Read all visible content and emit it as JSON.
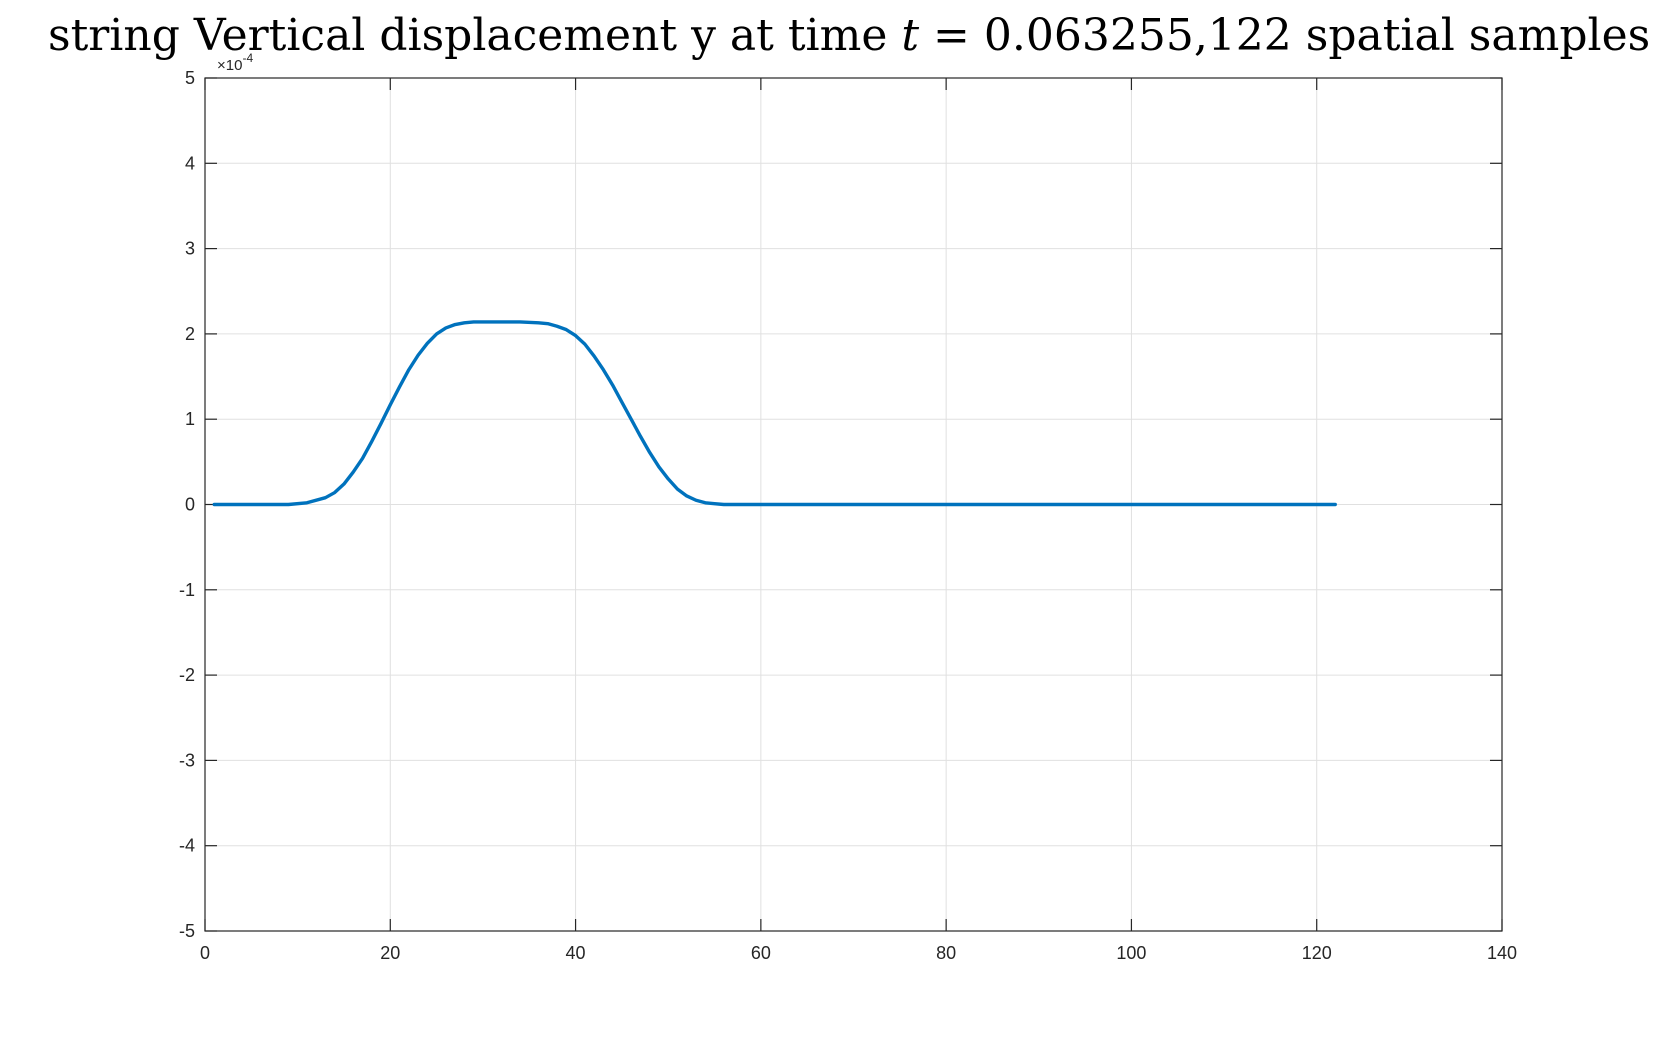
{
  "chart_data": {
    "type": "line",
    "title_prefix": "string Vertical displacement y at time ",
    "title_var": "t",
    "title_suffix": " = 0.063255,122 spatial samples",
    "xlabel": "",
    "ylabel": "",
    "xlim": [
      0,
      140
    ],
    "ylim": [
      -5,
      5
    ],
    "x_ticks": [
      0,
      20,
      40,
      60,
      80,
      100,
      120,
      140
    ],
    "y_ticks": [
      -5,
      -4,
      -3,
      -2,
      -1,
      0,
      1,
      2,
      3,
      4,
      5
    ],
    "y_exponent_label": "×10",
    "y_exponent_power": "-4",
    "grid": true,
    "line_color": "#0072BD",
    "series": [
      {
        "x": [
          1,
          5,
          9,
          11,
          13,
          14,
          15,
          16,
          17,
          18,
          19,
          20,
          21,
          22,
          23,
          24,
          25,
          26,
          27,
          28,
          29,
          30,
          32,
          34,
          36,
          37,
          38,
          39,
          40,
          41,
          42,
          43,
          44,
          45,
          46,
          47,
          48,
          49,
          50,
          51,
          52,
          53,
          54,
          55,
          56,
          58,
          60,
          80,
          100,
          122
        ],
        "y": [
          0,
          0,
          0,
          0.02,
          0.08,
          0.14,
          0.24,
          0.38,
          0.54,
          0.74,
          0.95,
          1.17,
          1.38,
          1.58,
          1.75,
          1.89,
          2.0,
          2.07,
          2.11,
          2.13,
          2.14,
          2.14,
          2.14,
          2.14,
          2.13,
          2.12,
          2.09,
          2.05,
          1.98,
          1.88,
          1.74,
          1.58,
          1.4,
          1.2,
          1.0,
          0.8,
          0.61,
          0.44,
          0.3,
          0.18,
          0.1,
          0.05,
          0.02,
          0.01,
          0,
          0,
          0,
          0,
          0,
          0
        ]
      }
    ]
  }
}
